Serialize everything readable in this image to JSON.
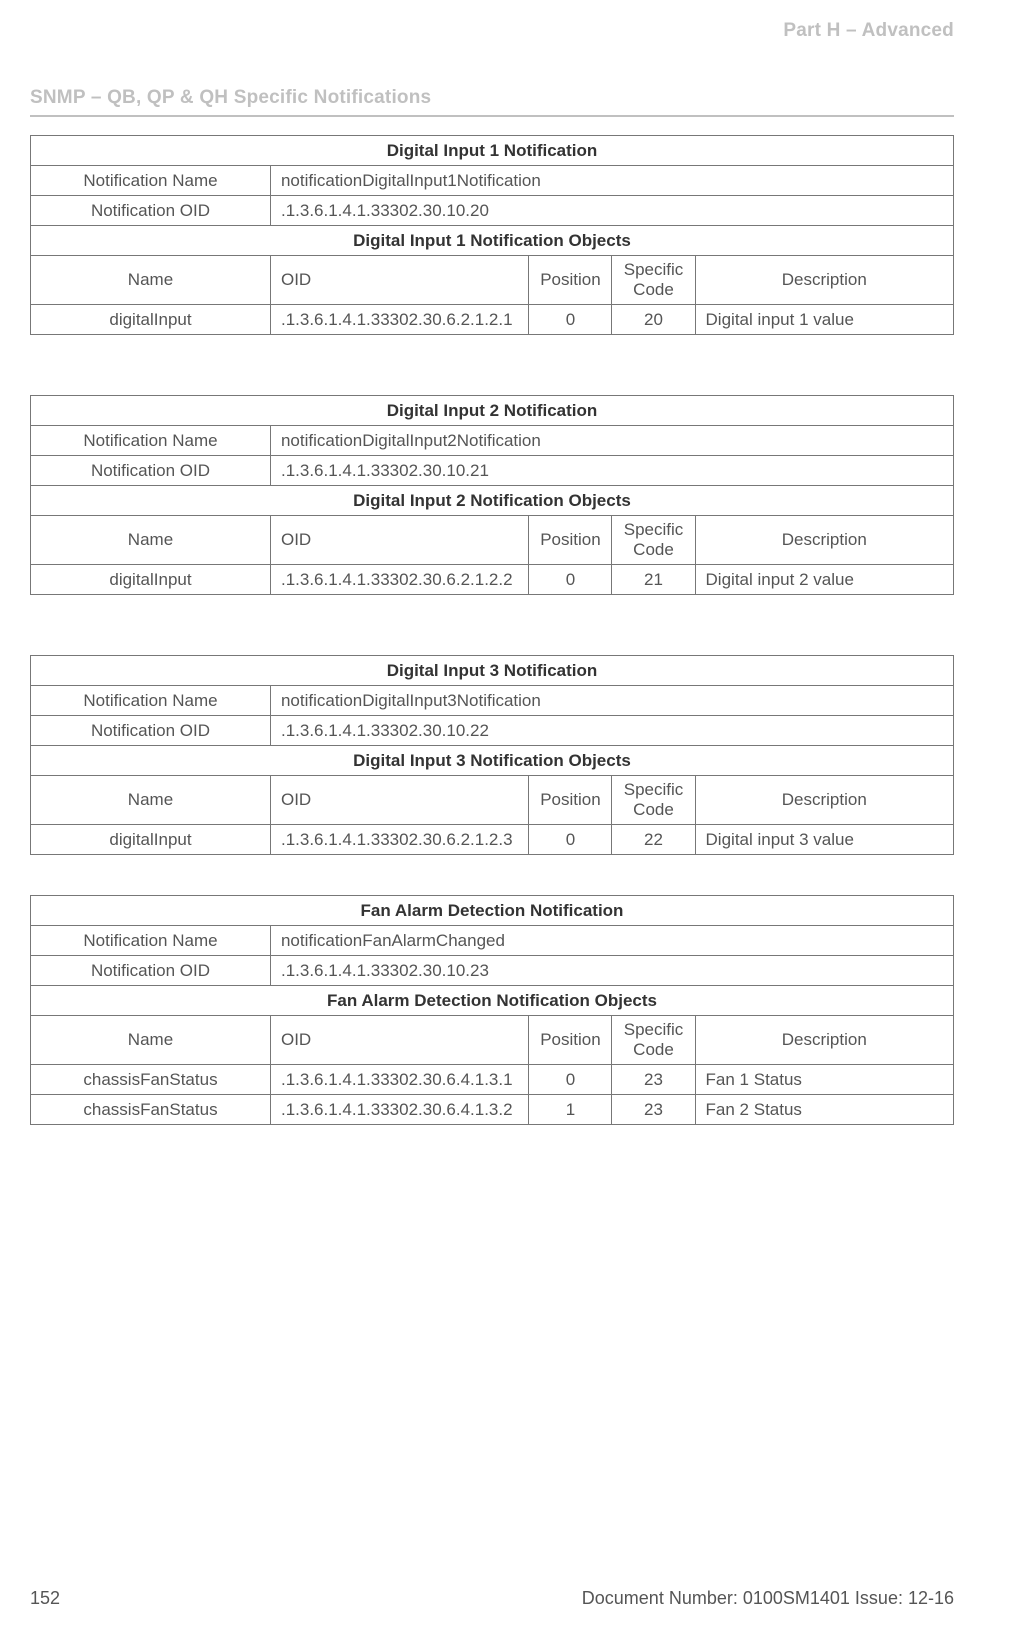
{
  "header": {
    "part": "Part H – Advanced"
  },
  "section_title": "SNMP – QB, QP & QH Specific Notifications",
  "labels": {
    "notif_name": "Notification Name",
    "notif_oid": "Notification OID",
    "name": "Name",
    "oid": "OID",
    "position": "Position",
    "specific_code": "Specific Code",
    "description": "Description"
  },
  "tables": [
    {
      "title": "Digital Input 1 Notification",
      "notif_name_value": "notificationDigitalInput1Notification",
      "notif_oid_value": ".1.3.6.1.4.1.33302.30.10.20",
      "objects_title": "Digital Input 1 Notification Objects",
      "rows": [
        {
          "name": "digitalInput",
          "oid": ".1.3.6.1.4.1.33302.30.6.2.1.2.1",
          "position": "0",
          "specific": "20",
          "description": "Digital input 1 value"
        }
      ]
    },
    {
      "title": "Digital Input 2 Notification",
      "notif_name_value": "notificationDigitalInput2Notification",
      "notif_oid_value": ".1.3.6.1.4.1.33302.30.10.21",
      "objects_title": "Digital Input 2 Notification Objects",
      "rows": [
        {
          "name": "digitalInput",
          "oid": ".1.3.6.1.4.1.33302.30.6.2.1.2.2",
          "position": "0",
          "specific": "21",
          "description": "Digital input 2 value"
        }
      ]
    },
    {
      "title": "Digital Input 3 Notification",
      "notif_name_value": "notificationDigitalInput3Notification",
      "notif_oid_value": ".1.3.6.1.4.1.33302.30.10.22",
      "objects_title": "Digital Input 3 Notification Objects",
      "rows": [
        {
          "name": "digitalInput",
          "oid": ".1.3.6.1.4.1.33302.30.6.2.1.2.3",
          "position": "0",
          "specific": "22",
          "description": "Digital input 3 value"
        }
      ]
    },
    {
      "title": "Fan Alarm Detection Notification",
      "notif_name_value": "notificationFanAlarmChanged",
      "notif_oid_value": ".1.3.6.1.4.1.33302.30.10.23",
      "objects_title": "Fan Alarm Detection Notification Objects",
      "rows": [
        {
          "name": "chassisFanStatus",
          "oid": ".1.3.6.1.4.1.33302.30.6.4.1.3.1",
          "position": "0",
          "specific": "23",
          "description": "Fan 1 Status"
        },
        {
          "name": "chassisFanStatus",
          "oid": ".1.3.6.1.4.1.33302.30.6.4.1.3.2",
          "position": "1",
          "specific": "23",
          "description": "Fan 2 Status"
        }
      ]
    }
  ],
  "footer": {
    "page": "152",
    "doc": "Document Number: 0100SM1401   Issue: 12-16"
  }
}
